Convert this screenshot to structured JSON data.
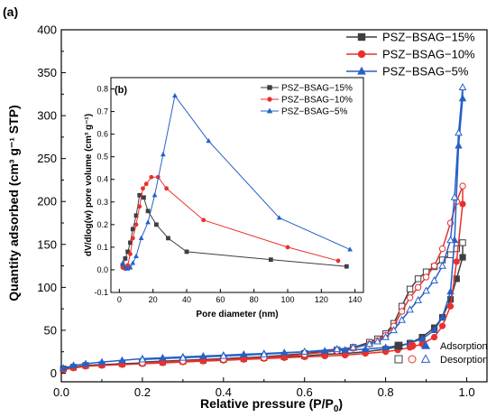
{
  "chart_data": [
    {
      "panel": "(a)",
      "type": "line",
      "xlabel": "Relative pressure (P/P",
      "xlabel_sub": "0",
      "xlabel_tail": ")",
      "ylabel": "Quantity adsorbed (cm³ g⁻¹ STP)",
      "xlim": [
        0,
        1.05
      ],
      "ylim": [
        -10,
        400
      ],
      "xticks": [
        "0.0",
        "0.2",
        "0.4",
        "0.6",
        "0.8",
        "1.0"
      ],
      "yticks": [
        "0",
        "50",
        "100",
        "150",
        "200",
        "250",
        "300",
        "350",
        "400"
      ],
      "legend": {
        "placement": "top-right",
        "entries": [
          "PSZ−BSAG−15%",
          "PSZ−BSAG−10%",
          "PSZ−BSAG−5%"
        ]
      },
      "marker_legend": {
        "placement": "bottom-right",
        "adsorption": "Adsorption",
        "desorption": "Desorption"
      },
      "series": [
        {
          "name": "PSZ−BSAG−15%",
          "color": "#3f3f3f",
          "marker": "square",
          "adsorption": {
            "x": [
              0.005,
              0.03,
              0.06,
              0.1,
              0.15,
              0.2,
              0.25,
              0.3,
              0.35,
              0.4,
              0.45,
              0.5,
              0.55,
              0.6,
              0.65,
              0.7,
              0.75,
              0.8,
              0.83,
              0.86,
              0.89,
              0.92,
              0.94,
              0.96,
              0.975,
              0.99
            ],
            "y": [
              5,
              7,
              9,
              10,
              11,
              12,
              13,
              14,
              15,
              16,
              17,
              18,
              19,
              20,
              22,
              23,
              25,
              28,
              31,
              35,
              42,
              53,
              65,
              86,
              110,
              135
            ]
          },
          "desorption": {
            "x": [
              0.99,
              0.975,
              0.96,
              0.94,
              0.92,
              0.9,
              0.88,
              0.86,
              0.84,
              0.82,
              0.8,
              0.78,
              0.76,
              0.72,
              0.68,
              0.6,
              0.5,
              0.4,
              0.3,
              0.2
            ],
            "y": [
              152,
              145,
              138,
              132,
              124,
              118,
              110,
              98,
              78,
              58,
              46,
              40,
              36,
              30,
              27,
              23,
              19,
              17,
              15,
              13
            ]
          }
        },
        {
          "name": "PSZ−BSAG−10%",
          "color": "#e8312d",
          "marker": "circle",
          "adsorption": {
            "x": [
              0.005,
              0.03,
              0.06,
              0.1,
              0.15,
              0.2,
              0.25,
              0.3,
              0.35,
              0.4,
              0.45,
              0.5,
              0.55,
              0.6,
              0.65,
              0.7,
              0.75,
              0.8,
              0.83,
              0.86,
              0.89,
              0.92,
              0.94,
              0.96,
              0.975,
              0.99
            ],
            "y": [
              4,
              6,
              8,
              9,
              10,
              11,
              12,
              13,
              14,
              15,
              16,
              17,
              18,
              19,
              20,
              21,
              23,
              25,
              27,
              30,
              34,
              42,
              55,
              78,
              130,
              197
            ]
          },
          "desorption": {
            "x": [
              0.99,
              0.975,
              0.96,
              0.94,
              0.92,
              0.9,
              0.88,
              0.86,
              0.84,
              0.82,
              0.8,
              0.78,
              0.76,
              0.72,
              0.68,
              0.6,
              0.5,
              0.4,
              0.3,
              0.2
            ],
            "y": [
              218,
              200,
              175,
              145,
              125,
              112,
              100,
              88,
              72,
              55,
              44,
              38,
              34,
              29,
              26,
              22,
              18,
              16,
              14,
              12
            ]
          }
        },
        {
          "name": "PSZ−BSAG−5%",
          "color": "#2660c9",
          "marker": "triangle",
          "adsorption": {
            "x": [
              0.005,
              0.03,
              0.06,
              0.1,
              0.15,
              0.2,
              0.25,
              0.3,
              0.35,
              0.4,
              0.45,
              0.5,
              0.55,
              0.6,
              0.65,
              0.7,
              0.75,
              0.8,
              0.83,
              0.86,
              0.89,
              0.92,
              0.94,
              0.96,
              0.97,
              0.98,
              0.99
            ],
            "y": [
              6,
              9,
              11,
              13,
              15,
              17,
              18,
              19,
              20,
              21,
              22,
              23,
              24,
              25,
              26,
              27,
              28,
              30,
              32,
              35,
              40,
              50,
              65,
              95,
              155,
              265,
              320
            ]
          },
          "desorption": {
            "x": [
              0.99,
              0.98,
              0.97,
              0.96,
              0.94,
              0.92,
              0.9,
              0.88,
              0.86,
              0.84,
              0.82,
              0.8,
              0.78,
              0.76,
              0.72,
              0.68,
              0.6,
              0.5,
              0.4,
              0.3,
              0.2
            ],
            "y": [
              333,
              280,
              205,
              155,
              125,
              108,
              96,
              85,
              74,
              62,
              50,
              42,
              37,
              34,
              30,
              28,
              25,
              22,
              20,
              18,
              16
            ]
          }
        }
      ]
    },
    {
      "panel": "(b)",
      "type": "line",
      "xlabel": "Pore diameter (nm)",
      "ylabel": "dV/dlog(w) pore volume (cm³ g⁻¹)",
      "xlim": [
        -5,
        145
      ],
      "ylim": [
        -0.1,
        0.85
      ],
      "xticks": [
        "0",
        "20",
        "40",
        "60",
        "80",
        "100",
        "120",
        "140"
      ],
      "yticks": [
        "-0.1",
        "0.0",
        "0.1",
        "0.2",
        "0.3",
        "0.4",
        "0.5",
        "0.6",
        "0.7",
        "0.8"
      ],
      "legend": {
        "placement": "top-right",
        "entries": [
          "PSZ−BSAG−15%",
          "PSZ−BSAG−10%",
          "PSZ−BSAG−5%"
        ]
      },
      "series": [
        {
          "name": "PSZ−BSAG−15%",
          "color": "#3f3f3f",
          "marker": "square",
          "x": [
            2,
            3.5,
            5,
            6.5,
            8,
            10,
            12,
            14.5,
            17,
            22,
            29,
            40,
            90,
            135
          ],
          "y": [
            0.02,
            0.05,
            0.08,
            0.12,
            0.18,
            0.24,
            0.33,
            0.32,
            0.26,
            0.2,
            0.14,
            0.08,
            0.045,
            0.015
          ]
        },
        {
          "name": "PSZ−BSAG−10%",
          "color": "#e8312d",
          "marker": "circle",
          "x": [
            2,
            3.5,
            5,
            6.5,
            8,
            10,
            12,
            14,
            16,
            19,
            23,
            28,
            50,
            100,
            130
          ],
          "y": [
            0.01,
            0.005,
            0.02,
            0.07,
            0.14,
            0.2,
            0.28,
            0.36,
            0.38,
            0.41,
            0.41,
            0.36,
            0.22,
            0.1,
            0.04
          ]
        },
        {
          "name": "PSZ−BSAG−5%",
          "color": "#2660c9",
          "marker": "triangle",
          "x": [
            2,
            3.5,
            5,
            6.5,
            8,
            10,
            13,
            17,
            21,
            26,
            33,
            53,
            95,
            137
          ],
          "y": [
            0.03,
            0.01,
            0.005,
            0.01,
            0.03,
            0.06,
            0.14,
            0.21,
            0.33,
            0.51,
            0.77,
            0.57,
            0.23,
            0.09
          ]
        }
      ]
    }
  ]
}
